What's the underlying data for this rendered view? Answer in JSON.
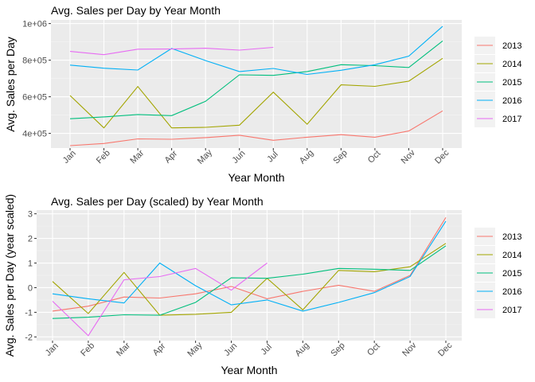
{
  "chart_data": [
    {
      "type": "line",
      "title": "Avg. Sales per Day by Year Month",
      "xlabel": "Year Month",
      "ylabel": "Avg. Sales per Day",
      "categories": [
        "Jan",
        "Feb",
        "Mar",
        "Apr",
        "May",
        "Jun",
        "Jul",
        "Aug",
        "Sep",
        "Oct",
        "Nov",
        "Dec"
      ],
      "yticks": [
        400000,
        600000,
        800000,
        1000000
      ],
      "ytick_labels": [
        "4e+05",
        "6e+05",
        "8e+05",
        "1e+06"
      ],
      "ylim": [
        320000,
        1020000
      ],
      "grid": true,
      "legend_position": "right",
      "series": [
        {
          "name": "2013",
          "color": "#F8766D",
          "values": [
            333000,
            345000,
            370000,
            368000,
            377000,
            390000,
            362000,
            379000,
            393000,
            379000,
            413000,
            523000
          ]
        },
        {
          "name": "2014",
          "color": "#A3A500",
          "values": [
            607000,
            430000,
            656000,
            430000,
            433000,
            445000,
            625000,
            450000,
            665000,
            657000,
            685000,
            810000
          ]
        },
        {
          "name": "2015",
          "color": "#00BF7D",
          "values": [
            480000,
            490000,
            503000,
            497000,
            575000,
            720000,
            717000,
            738000,
            775000,
            770000,
            760000,
            905000
          ]
        },
        {
          "name": "2016",
          "color": "#00B0F6",
          "values": [
            773000,
            756000,
            746000,
            864000,
            798000,
            738000,
            755000,
            722000,
            745000,
            775000,
            822000,
            985000
          ]
        },
        {
          "name": "2017",
          "color": "#E76BF3",
          "values": [
            848000,
            830000,
            860000,
            861000,
            865000,
            855000,
            870000,
            null,
            null,
            null,
            null,
            null
          ]
        }
      ]
    },
    {
      "type": "line",
      "title": "Avg. Sales per Day (scaled) by Year Month",
      "xlabel": "Year Month",
      "ylabel": "Avg. Sales per Day (year scaled)",
      "categories": [
        "Jan",
        "Feb",
        "Mar",
        "Apr",
        "May",
        "Jun",
        "Jul",
        "Aug",
        "Sep",
        "Oct",
        "Nov",
        "Dec"
      ],
      "yticks": [
        -2,
        -1,
        0,
        1,
        2,
        3
      ],
      "ytick_labels": [
        "-2",
        "-1",
        "0",
        "1",
        "2",
        "3"
      ],
      "ylim": [
        -2.15,
        3.15
      ],
      "grid": true,
      "legend_position": "right",
      "series": [
        {
          "name": "2013",
          "color": "#F8766D",
          "values": [
            -0.95,
            -0.75,
            -0.38,
            -0.42,
            -0.25,
            0.05,
            -0.45,
            -0.15,
            0.1,
            -0.15,
            0.5,
            2.85
          ]
        },
        {
          "name": "2014",
          "color": "#A3A500",
          "values": [
            0.25,
            -1.05,
            0.62,
            -1.12,
            -1.08,
            -1.0,
            0.38,
            -0.9,
            0.7,
            0.65,
            0.85,
            1.8
          ]
        },
        {
          "name": "2015",
          "color": "#00BF7D",
          "values": [
            -1.25,
            -1.2,
            -1.1,
            -1.12,
            -0.6,
            0.4,
            0.38,
            0.55,
            0.78,
            0.75,
            0.7,
            1.7
          ]
        },
        {
          "name": "2016",
          "color": "#00B0F6",
          "values": [
            -0.25,
            -0.45,
            -0.62,
            1.0,
            0.08,
            -0.7,
            -0.5,
            -0.95,
            -0.6,
            -0.2,
            0.45,
            2.7
          ]
        },
        {
          "name": "2017",
          "color": "#E76BF3",
          "values": [
            -0.55,
            -1.95,
            0.32,
            0.45,
            0.78,
            -0.1,
            1.0,
            null,
            null,
            null,
            null,
            null
          ]
        }
      ]
    }
  ]
}
